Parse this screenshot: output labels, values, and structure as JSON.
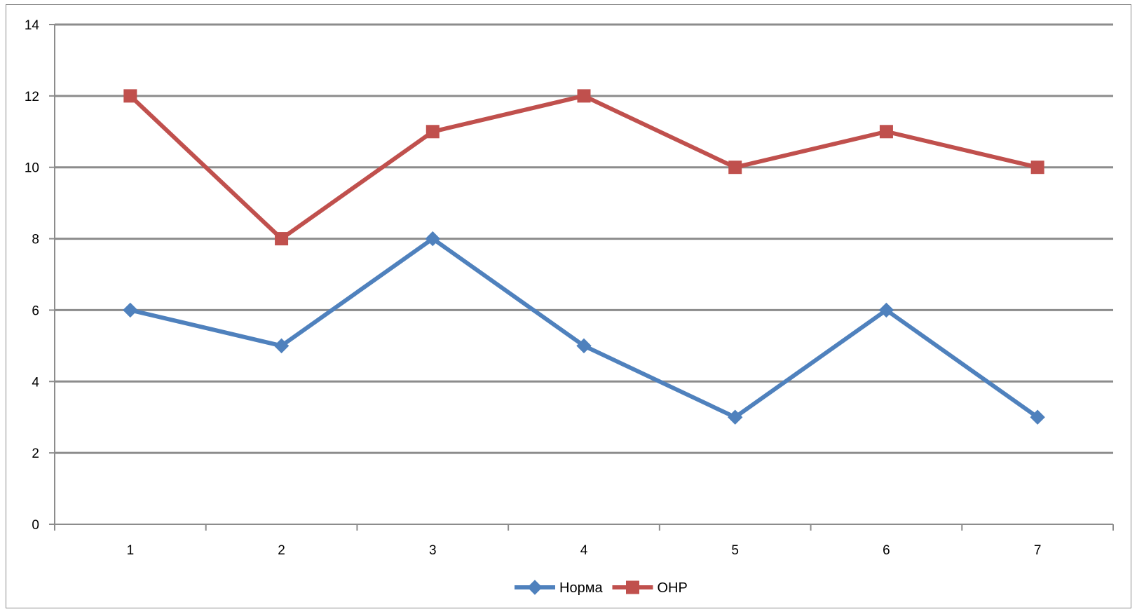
{
  "chart_data": {
    "type": "line",
    "title": "",
    "xlabel": "",
    "ylabel": "",
    "x": [
      "1",
      "2",
      "3",
      "4",
      "5",
      "6",
      "7"
    ],
    "ylim": [
      0,
      14
    ],
    "yticks": [
      0,
      2,
      4,
      6,
      8,
      10,
      12,
      14
    ],
    "grid": "horizontal major gridlines on",
    "legend_position": "bottom",
    "series": [
      {
        "name": "Норма",
        "values": [
          6,
          5,
          8,
          5,
          3,
          6,
          3
        ],
        "color": "#4F81BD",
        "marker": "diamond"
      },
      {
        "name": "ОНР",
        "values": [
          12,
          8,
          11,
          12,
          10,
          11,
          10
        ],
        "color": "#C0504D",
        "marker": "square"
      }
    ]
  }
}
